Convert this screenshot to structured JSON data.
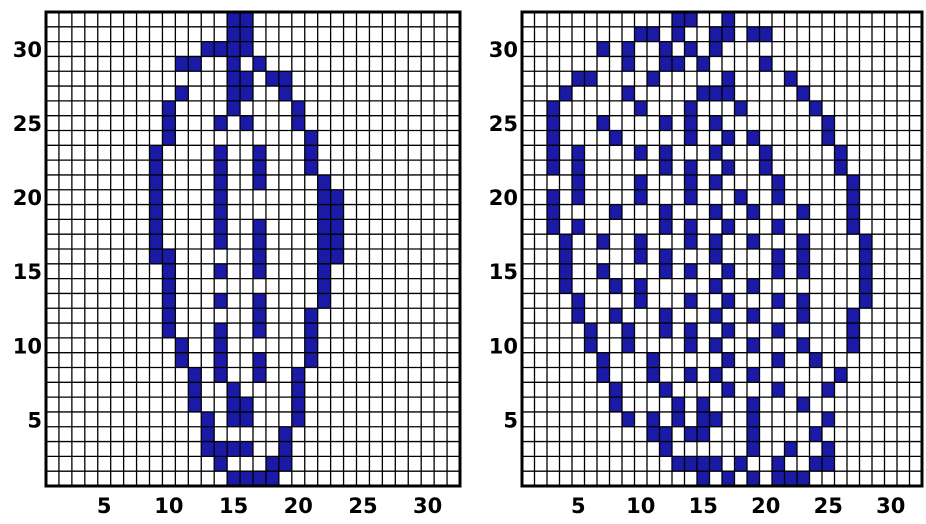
{
  "chart_data": [
    {
      "type": "heatmap",
      "grid_size": [
        32,
        32
      ],
      "xticks": [
        5,
        10,
        15,
        20,
        25,
        30
      ],
      "yticks": [
        5,
        10,
        15,
        20,
        25,
        30
      ],
      "xlim": [
        0.5,
        32.5
      ],
      "ylim": [
        0.5,
        32.5
      ],
      "cell_color": "#1a1aa6",
      "cells": [
        [
          15,
          32
        ],
        [
          16,
          32
        ],
        [
          15,
          31
        ],
        [
          16,
          31
        ],
        [
          13,
          30
        ],
        [
          14,
          30
        ],
        [
          15,
          30
        ],
        [
          16,
          30
        ],
        [
          11,
          29
        ],
        [
          12,
          29
        ],
        [
          15,
          29
        ],
        [
          17,
          29
        ],
        [
          15,
          28
        ],
        [
          16,
          28
        ],
        [
          18,
          28
        ],
        [
          19,
          28
        ],
        [
          11,
          27
        ],
        [
          15,
          27
        ],
        [
          16,
          27
        ],
        [
          19,
          27
        ],
        [
          10,
          26
        ],
        [
          15,
          26
        ],
        [
          20,
          26
        ],
        [
          10,
          25
        ],
        [
          14,
          25
        ],
        [
          16,
          25
        ],
        [
          20,
          25
        ],
        [
          10,
          24
        ],
        [
          21,
          24
        ],
        [
          9,
          23
        ],
        [
          14,
          23
        ],
        [
          17,
          23
        ],
        [
          21,
          23
        ],
        [
          9,
          22
        ],
        [
          14,
          22
        ],
        [
          17,
          22
        ],
        [
          21,
          22
        ],
        [
          9,
          21
        ],
        [
          14,
          21
        ],
        [
          17,
          21
        ],
        [
          22,
          21
        ],
        [
          9,
          20
        ],
        [
          14,
          20
        ],
        [
          22,
          20
        ],
        [
          23,
          20
        ],
        [
          9,
          19
        ],
        [
          14,
          19
        ],
        [
          22,
          19
        ],
        [
          23,
          19
        ],
        [
          9,
          18
        ],
        [
          14,
          18
        ],
        [
          17,
          18
        ],
        [
          22,
          18
        ],
        [
          23,
          18
        ],
        [
          9,
          17
        ],
        [
          14,
          17
        ],
        [
          17,
          17
        ],
        [
          22,
          17
        ],
        [
          23,
          17
        ],
        [
          9,
          16
        ],
        [
          10,
          16
        ],
        [
          17,
          16
        ],
        [
          22,
          16
        ],
        [
          23,
          16
        ],
        [
          10,
          15
        ],
        [
          14,
          15
        ],
        [
          17,
          15
        ],
        [
          22,
          15
        ],
        [
          10,
          14
        ],
        [
          22,
          14
        ],
        [
          10,
          13
        ],
        [
          14,
          13
        ],
        [
          17,
          13
        ],
        [
          22,
          13
        ],
        [
          10,
          12
        ],
        [
          17,
          12
        ],
        [
          21,
          12
        ],
        [
          10,
          11
        ],
        [
          14,
          11
        ],
        [
          17,
          11
        ],
        [
          21,
          11
        ],
        [
          11,
          10
        ],
        [
          14,
          10
        ],
        [
          21,
          10
        ],
        [
          11,
          9
        ],
        [
          14,
          9
        ],
        [
          17,
          9
        ],
        [
          21,
          9
        ],
        [
          12,
          8
        ],
        [
          14,
          8
        ],
        [
          17,
          8
        ],
        [
          20,
          8
        ],
        [
          12,
          7
        ],
        [
          15,
          7
        ],
        [
          20,
          7
        ],
        [
          12,
          6
        ],
        [
          15,
          6
        ],
        [
          16,
          6
        ],
        [
          20,
          6
        ],
        [
          13,
          5
        ],
        [
          15,
          5
        ],
        [
          16,
          5
        ],
        [
          20,
          5
        ],
        [
          13,
          4
        ],
        [
          19,
          4
        ],
        [
          13,
          3
        ],
        [
          14,
          3
        ],
        [
          15,
          3
        ],
        [
          16,
          3
        ],
        [
          19,
          3
        ],
        [
          14,
          2
        ],
        [
          18,
          2
        ],
        [
          19,
          2
        ],
        [
          15,
          1
        ],
        [
          16,
          1
        ],
        [
          17,
          1
        ],
        [
          18,
          1
        ]
      ]
    },
    {
      "type": "heatmap",
      "grid_size": [
        32,
        32
      ],
      "xticks": [
        5,
        10,
        15,
        20,
        25,
        30
      ],
      "yticks": [
        5,
        10,
        15,
        20,
        25,
        30
      ],
      "xlim": [
        0.5,
        32.5
      ],
      "ylim": [
        0.5,
        32.5
      ],
      "cell_color": "#1a1aa6",
      "cells": [
        [
          13,
          32
        ],
        [
          14,
          32
        ],
        [
          17,
          32
        ],
        [
          10,
          31
        ],
        [
          11,
          31
        ],
        [
          13,
          31
        ],
        [
          16,
          31
        ],
        [
          17,
          31
        ],
        [
          19,
          31
        ],
        [
          20,
          31
        ],
        [
          7,
          30
        ],
        [
          9,
          30
        ],
        [
          12,
          30
        ],
        [
          14,
          30
        ],
        [
          16,
          30
        ],
        [
          9,
          29
        ],
        [
          12,
          29
        ],
        [
          13,
          29
        ],
        [
          15,
          29
        ],
        [
          20,
          29
        ],
        [
          5,
          28
        ],
        [
          6,
          28
        ],
        [
          11,
          28
        ],
        [
          17,
          28
        ],
        [
          22,
          28
        ],
        [
          4,
          27
        ],
        [
          9,
          27
        ],
        [
          15,
          27
        ],
        [
          16,
          27
        ],
        [
          17,
          27
        ],
        [
          23,
          27
        ],
        [
          3,
          26
        ],
        [
          10,
          26
        ],
        [
          14,
          26
        ],
        [
          18,
          26
        ],
        [
          24,
          26
        ],
        [
          3,
          25
        ],
        [
          7,
          25
        ],
        [
          12,
          25
        ],
        [
          14,
          25
        ],
        [
          16,
          25
        ],
        [
          25,
          25
        ],
        [
          3,
          24
        ],
        [
          8,
          24
        ],
        [
          14,
          24
        ],
        [
          17,
          24
        ],
        [
          19,
          24
        ],
        [
          25,
          24
        ],
        [
          3,
          23
        ],
        [
          5,
          23
        ],
        [
          10,
          23
        ],
        [
          12,
          23
        ],
        [
          16,
          23
        ],
        [
          20,
          23
        ],
        [
          26,
          23
        ],
        [
          3,
          22
        ],
        [
          5,
          22
        ],
        [
          12,
          22
        ],
        [
          14,
          22
        ],
        [
          17,
          22
        ],
        [
          20,
          22
        ],
        [
          26,
          22
        ],
        [
          5,
          21
        ],
        [
          10,
          21
        ],
        [
          14,
          21
        ],
        [
          16,
          21
        ],
        [
          21,
          21
        ],
        [
          27,
          21
        ],
        [
          3,
          20
        ],
        [
          5,
          20
        ],
        [
          10,
          20
        ],
        [
          14,
          20
        ],
        [
          18,
          20
        ],
        [
          21,
          20
        ],
        [
          27,
          20
        ],
        [
          3,
          19
        ],
        [
          8,
          19
        ],
        [
          12,
          19
        ],
        [
          16,
          19
        ],
        [
          19,
          19
        ],
        [
          23,
          19
        ],
        [
          27,
          19
        ],
        [
          3,
          18
        ],
        [
          5,
          18
        ],
        [
          12,
          18
        ],
        [
          14,
          18
        ],
        [
          17,
          18
        ],
        [
          21,
          18
        ],
        [
          27,
          18
        ],
        [
          4,
          17
        ],
        [
          7,
          17
        ],
        [
          10,
          17
        ],
        [
          14,
          17
        ],
        [
          16,
          17
        ],
        [
          19,
          17
        ],
        [
          23,
          17
        ],
        [
          28,
          17
        ],
        [
          4,
          16
        ],
        [
          10,
          16
        ],
        [
          12,
          16
        ],
        [
          16,
          16
        ],
        [
          21,
          16
        ],
        [
          23,
          16
        ],
        [
          28,
          16
        ],
        [
          4,
          15
        ],
        [
          7,
          15
        ],
        [
          12,
          15
        ],
        [
          14,
          15
        ],
        [
          17,
          15
        ],
        [
          21,
          15
        ],
        [
          23,
          15
        ],
        [
          28,
          15
        ],
        [
          4,
          14
        ],
        [
          8,
          14
        ],
        [
          10,
          14
        ],
        [
          16,
          14
        ],
        [
          19,
          14
        ],
        [
          28,
          14
        ],
        [
          5,
          13
        ],
        [
          10,
          13
        ],
        [
          14,
          13
        ],
        [
          17,
          13
        ],
        [
          21,
          13
        ],
        [
          23,
          13
        ],
        [
          28,
          13
        ],
        [
          5,
          12
        ],
        [
          8,
          12
        ],
        [
          12,
          12
        ],
        [
          16,
          12
        ],
        [
          19,
          12
        ],
        [
          23,
          12
        ],
        [
          27,
          12
        ],
        [
          6,
          11
        ],
        [
          9,
          11
        ],
        [
          12,
          11
        ],
        [
          14,
          11
        ],
        [
          17,
          11
        ],
        [
          21,
          11
        ],
        [
          27,
          11
        ],
        [
          6,
          10
        ],
        [
          9,
          10
        ],
        [
          14,
          10
        ],
        [
          16,
          10
        ],
        [
          19,
          10
        ],
        [
          23,
          10
        ],
        [
          27,
          10
        ],
        [
          7,
          9
        ],
        [
          11,
          9
        ],
        [
          17,
          9
        ],
        [
          21,
          9
        ],
        [
          24,
          9
        ],
        [
          7,
          8
        ],
        [
          11,
          8
        ],
        [
          14,
          8
        ],
        [
          16,
          8
        ],
        [
          19,
          8
        ],
        [
          26,
          8
        ],
        [
          8,
          7
        ],
        [
          12,
          7
        ],
        [
          17,
          7
        ],
        [
          21,
          7
        ],
        [
          25,
          7
        ],
        [
          8,
          6
        ],
        [
          13,
          6
        ],
        [
          15,
          6
        ],
        [
          19,
          6
        ],
        [
          23,
          6
        ],
        [
          9,
          5
        ],
        [
          11,
          5
        ],
        [
          13,
          5
        ],
        [
          15,
          5
        ],
        [
          16,
          5
        ],
        [
          19,
          5
        ],
        [
          25,
          5
        ],
        [
          11,
          4
        ],
        [
          12,
          4
        ],
        [
          14,
          4
        ],
        [
          15,
          4
        ],
        [
          19,
          4
        ],
        [
          24,
          4
        ],
        [
          12,
          3
        ],
        [
          19,
          3
        ],
        [
          22,
          3
        ],
        [
          25,
          3
        ],
        [
          13,
          2
        ],
        [
          14,
          2
        ],
        [
          15,
          2
        ],
        [
          16,
          2
        ],
        [
          18,
          2
        ],
        [
          21,
          2
        ],
        [
          24,
          2
        ],
        [
          25,
          2
        ],
        [
          15,
          1
        ],
        [
          17,
          1
        ],
        [
          19,
          1
        ],
        [
          21,
          1
        ],
        [
          22,
          1
        ],
        [
          23,
          1
        ]
      ]
    }
  ]
}
